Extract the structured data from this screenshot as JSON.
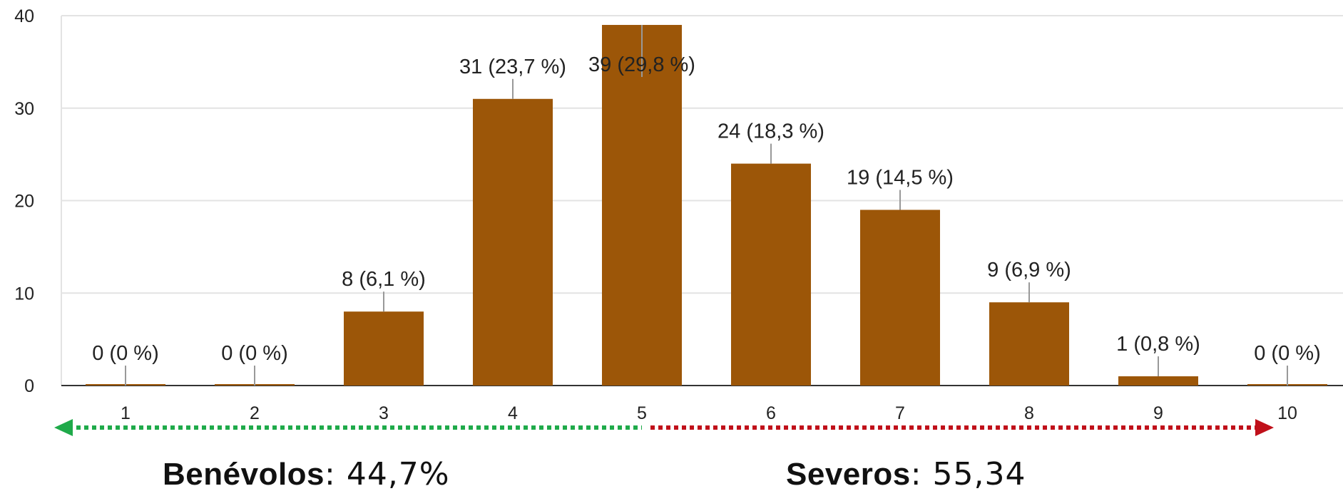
{
  "chart_data": {
    "type": "bar",
    "categories": [
      "1",
      "2",
      "3",
      "4",
      "5",
      "6",
      "7",
      "8",
      "9",
      "10"
    ],
    "values": [
      0,
      0,
      8,
      31,
      39,
      24,
      19,
      9,
      1,
      0
    ],
    "data_labels": [
      "0 (0 %)",
      "0 (0 %)",
      "8 (6,1 %)",
      "31 (23,7 %)",
      "39 (29,8 %)",
      "24 (18,3 %)",
      "19 (14,5 %)",
      "9 (6,9 %)",
      "1 (0,8 %)",
      "0 (0 %)"
    ],
    "y_ticks": [
      0,
      10,
      20,
      30,
      40
    ],
    "ylim": [
      0,
      40
    ],
    "grid": true,
    "bar_color": "#9c5608",
    "title": "",
    "xlabel": "",
    "ylabel": ""
  },
  "scale_arrows": {
    "left_color": "#1faa4a",
    "right_color": "#c0101a"
  },
  "summary": {
    "left_label": "Benévolos",
    "left_value": ": 44,7%",
    "right_label": "Severos",
    "right_value": ": 55,34"
  }
}
